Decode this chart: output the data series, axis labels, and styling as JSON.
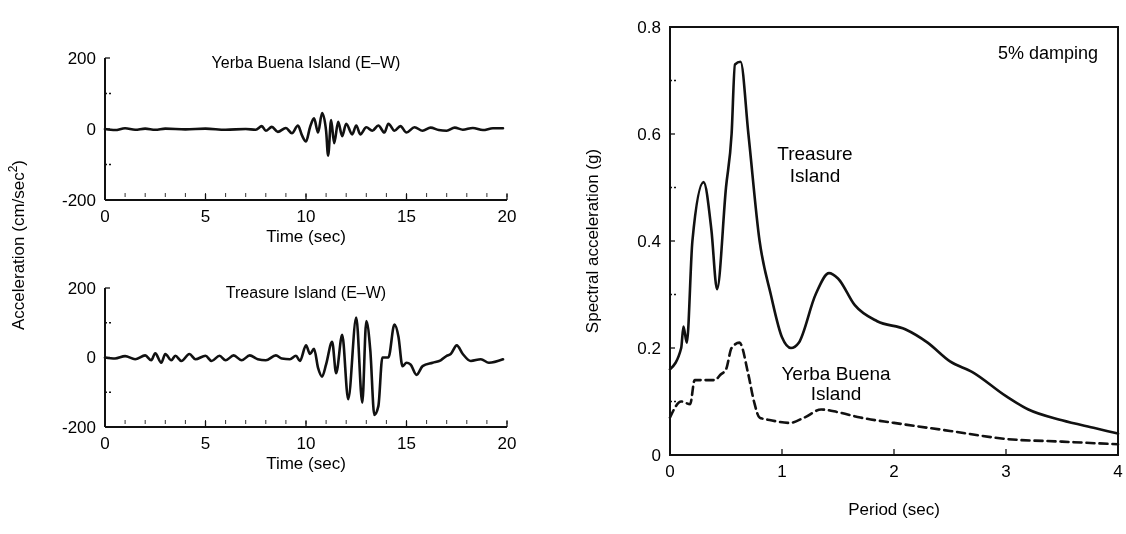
{
  "chart_data": [
    {
      "type": "line",
      "title": "Yerba Buena Island (E–W)",
      "xlabel": "Time (sec)",
      "ylabel": "Acceleration (cm/sec$^{2}$)",
      "xlim": [
        0,
        20
      ],
      "ylim": [
        -200,
        200
      ],
      "xticks": [
        0,
        5,
        10,
        15,
        20
      ],
      "yticks": [
        -200,
        {
          "value": -100,
          "label": null
        },
        0,
        {
          "value": 100,
          "label": null
        },
        200
      ],
      "grid": false,
      "series": [
        {
          "color": "#111111",
          "x": [
            0,
            0.5,
            1,
            1.5,
            2,
            2.5,
            3,
            4,
            5,
            6,
            7,
            7.5,
            7.8,
            8,
            8.3,
            8.6,
            9,
            9.3,
            9.6,
            9.8,
            10,
            10.2,
            10.4,
            10.6,
            10.8,
            11,
            11.1,
            11.25,
            11.4,
            11.6,
            11.8,
            12,
            12.3,
            12.5,
            12.7,
            13,
            13.3,
            13.6,
            13.9,
            14.1,
            14.4,
            14.7,
            15,
            15.4,
            15.8,
            16.2,
            16.6,
            17,
            17.4,
            17.8,
            18.3,
            18.8,
            19.3,
            19.8
          ],
          "values": [
            0,
            -3,
            2,
            -2,
            1,
            -2,
            1,
            -1,
            1,
            -2,
            0,
            -2,
            8,
            -5,
            6,
            -8,
            3,
            -12,
            10,
            -18,
            -35,
            5,
            30,
            -10,
            45,
            -5,
            -75,
            25,
            -40,
            20,
            -20,
            15,
            -15,
            10,
            -15,
            5,
            -5,
            10,
            -10,
            15,
            -5,
            8,
            -10,
            5,
            -5,
            4,
            -3,
            -5,
            4,
            -2,
            3,
            -3,
            2,
            2
          ]
        }
      ]
    },
    {
      "type": "line",
      "title": "Treasure Island (E–W)",
      "xlabel": "Time (sec)",
      "xlim": [
        0,
        20
      ],
      "ylim": [
        -200,
        200
      ],
      "xticks": [
        0,
        5,
        10,
        15,
        20
      ],
      "yticks": [
        -200,
        {
          "value": -100,
          "label": null
        },
        0,
        {
          "value": 100,
          "label": null
        },
        200
      ],
      "grid": false,
      "series": [
        {
          "color": "#111111",
          "x": [
            0,
            0.5,
            1,
            1.5,
            2,
            2.3,
            2.5,
            2.8,
            3,
            3.3,
            3.5,
            3.8,
            4.2,
            4.5,
            5,
            5.3,
            5.7,
            6,
            6.4,
            6.8,
            7.2,
            7.6,
            8,
            8.5,
            8.8,
            9.2,
            9.5,
            9.7,
            10,
            10.2,
            10.4,
            10.6,
            10.8,
            11,
            11.3,
            11.5,
            11.8,
            12.1,
            12.5,
            12.8,
            13,
            13.2,
            13.4,
            13.6,
            13.8,
            14.1,
            14.4,
            14.6,
            14.8,
            15,
            15.2,
            15.5,
            15.8,
            16.3,
            16.7,
            17,
            17.2,
            17.5,
            17.8,
            18.2,
            18.7,
            19.1,
            19.8
          ],
          "values": [
            0,
            -3,
            4,
            -5,
            6,
            -8,
            12,
            -15,
            10,
            -8,
            5,
            -10,
            10,
            -5,
            5,
            -10,
            5,
            -8,
            6,
            -8,
            6,
            -5,
            -8,
            6,
            -3,
            -5,
            5,
            -10,
            35,
            10,
            25,
            -30,
            -55,
            -20,
            45,
            -45,
            65,
            -120,
            115,
            -130,
            105,
            20,
            -165,
            -140,
            0,
            0,
            95,
            60,
            -25,
            -15,
            -20,
            -50,
            -25,
            -15,
            -8,
            5,
            10,
            35,
            10,
            -10,
            -5,
            -15,
            -5
          ]
        }
      ]
    },
    {
      "type": "line",
      "xlabel": "Period (sec)",
      "ylabel": "Spectral acceleration (g)",
      "xlim": [
        0,
        4
      ],
      "ylim": [
        0,
        0.8
      ],
      "xticks": [
        0,
        1,
        2,
        3,
        4
      ],
      "yticks": [
        0,
        {
          "value": 0.1,
          "label": null
        },
        0.2,
        {
          "value": 0.3,
          "label": null
        },
        0.4,
        {
          "value": 0.5,
          "label": null
        },
        0.6,
        {
          "value": 0.7,
          "label": null
        },
        0.8
      ],
      "grid": false,
      "annotations": [
        "5% damping"
      ],
      "series": [
        {
          "name": "Treasure Island",
          "color": "#111111",
          "line_style": "solid",
          "x": [
            0,
            0.1,
            0.12,
            0.15,
            0.2,
            0.3,
            0.37,
            0.42,
            0.5,
            0.55,
            0.58,
            0.63,
            0.7,
            0.8,
            0.9,
            1,
            1.08,
            1.15,
            1.3,
            1.42,
            1.5,
            1.65,
            1.85,
            2.1,
            2.3,
            2.5,
            2.7,
            3,
            3.2,
            3.5,
            3.8,
            4
          ],
          "values": [
            0.16,
            0.2,
            0.24,
            0.21,
            0.4,
            0.51,
            0.42,
            0.31,
            0.5,
            0.6,
            0.73,
            0.735,
            0.6,
            0.4,
            0.3,
            0.22,
            0.2,
            0.21,
            0.3,
            0.34,
            0.33,
            0.28,
            0.25,
            0.235,
            0.21,
            0.175,
            0.155,
            0.11,
            0.085,
            0.065,
            0.05,
            0.04
          ]
        },
        {
          "name": "Yerba Buena Island",
          "color": "#111111",
          "line_style": "dashed",
          "x": [
            0,
            0.1,
            0.18,
            0.22,
            0.4,
            0.45,
            0.5,
            0.55,
            0.62,
            0.7,
            0.75,
            0.8,
            0.9,
            1.07,
            1.2,
            1.35,
            1.5,
            1.7,
            2,
            2.5,
            3,
            3.5,
            4
          ],
          "values": [
            0.07,
            0.1,
            0.095,
            0.14,
            0.14,
            0.15,
            0.16,
            0.2,
            0.21,
            0.15,
            0.1,
            0.07,
            0.065,
            0.06,
            0.07,
            0.085,
            0.08,
            0.07,
            0.06,
            0.045,
            0.03,
            0.025,
            0.02
          ]
        }
      ]
    }
  ]
}
